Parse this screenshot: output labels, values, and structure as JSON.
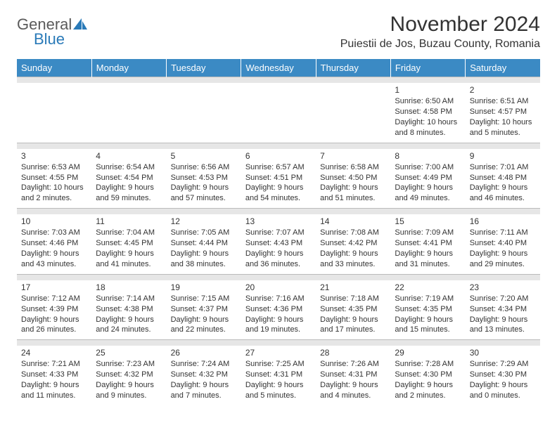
{
  "brand": {
    "word1": "General",
    "word2": "Blue",
    "logo_color": "#2a7ab8",
    "text_color": "#5a5a5a"
  },
  "title": "November 2024",
  "location": "Puiestii de Jos, Buzau County, Romania",
  "colors": {
    "header_bg": "#3b8ac4",
    "sep_bg": "#e6e6e6"
  },
  "day_headers": [
    "Sunday",
    "Monday",
    "Tuesday",
    "Wednesday",
    "Thursday",
    "Friday",
    "Saturday"
  ],
  "weeks": [
    [
      {
        "n": "",
        "sr": "",
        "ss": "",
        "dl": ""
      },
      {
        "n": "",
        "sr": "",
        "ss": "",
        "dl": ""
      },
      {
        "n": "",
        "sr": "",
        "ss": "",
        "dl": ""
      },
      {
        "n": "",
        "sr": "",
        "ss": "",
        "dl": ""
      },
      {
        "n": "",
        "sr": "",
        "ss": "",
        "dl": ""
      },
      {
        "n": "1",
        "sr": "Sunrise: 6:50 AM",
        "ss": "Sunset: 4:58 PM",
        "dl": "Daylight: 10 hours and 8 minutes."
      },
      {
        "n": "2",
        "sr": "Sunrise: 6:51 AM",
        "ss": "Sunset: 4:57 PM",
        "dl": "Daylight: 10 hours and 5 minutes."
      }
    ],
    [
      {
        "n": "3",
        "sr": "Sunrise: 6:53 AM",
        "ss": "Sunset: 4:55 PM",
        "dl": "Daylight: 10 hours and 2 minutes."
      },
      {
        "n": "4",
        "sr": "Sunrise: 6:54 AM",
        "ss": "Sunset: 4:54 PM",
        "dl": "Daylight: 9 hours and 59 minutes."
      },
      {
        "n": "5",
        "sr": "Sunrise: 6:56 AM",
        "ss": "Sunset: 4:53 PM",
        "dl": "Daylight: 9 hours and 57 minutes."
      },
      {
        "n": "6",
        "sr": "Sunrise: 6:57 AM",
        "ss": "Sunset: 4:51 PM",
        "dl": "Daylight: 9 hours and 54 minutes."
      },
      {
        "n": "7",
        "sr": "Sunrise: 6:58 AM",
        "ss": "Sunset: 4:50 PM",
        "dl": "Daylight: 9 hours and 51 minutes."
      },
      {
        "n": "8",
        "sr": "Sunrise: 7:00 AM",
        "ss": "Sunset: 4:49 PM",
        "dl": "Daylight: 9 hours and 49 minutes."
      },
      {
        "n": "9",
        "sr": "Sunrise: 7:01 AM",
        "ss": "Sunset: 4:48 PM",
        "dl": "Daylight: 9 hours and 46 minutes."
      }
    ],
    [
      {
        "n": "10",
        "sr": "Sunrise: 7:03 AM",
        "ss": "Sunset: 4:46 PM",
        "dl": "Daylight: 9 hours and 43 minutes."
      },
      {
        "n": "11",
        "sr": "Sunrise: 7:04 AM",
        "ss": "Sunset: 4:45 PM",
        "dl": "Daylight: 9 hours and 41 minutes."
      },
      {
        "n": "12",
        "sr": "Sunrise: 7:05 AM",
        "ss": "Sunset: 4:44 PM",
        "dl": "Daylight: 9 hours and 38 minutes."
      },
      {
        "n": "13",
        "sr": "Sunrise: 7:07 AM",
        "ss": "Sunset: 4:43 PM",
        "dl": "Daylight: 9 hours and 36 minutes."
      },
      {
        "n": "14",
        "sr": "Sunrise: 7:08 AM",
        "ss": "Sunset: 4:42 PM",
        "dl": "Daylight: 9 hours and 33 minutes."
      },
      {
        "n": "15",
        "sr": "Sunrise: 7:09 AM",
        "ss": "Sunset: 4:41 PM",
        "dl": "Daylight: 9 hours and 31 minutes."
      },
      {
        "n": "16",
        "sr": "Sunrise: 7:11 AM",
        "ss": "Sunset: 4:40 PM",
        "dl": "Daylight: 9 hours and 29 minutes."
      }
    ],
    [
      {
        "n": "17",
        "sr": "Sunrise: 7:12 AM",
        "ss": "Sunset: 4:39 PM",
        "dl": "Daylight: 9 hours and 26 minutes."
      },
      {
        "n": "18",
        "sr": "Sunrise: 7:14 AM",
        "ss": "Sunset: 4:38 PM",
        "dl": "Daylight: 9 hours and 24 minutes."
      },
      {
        "n": "19",
        "sr": "Sunrise: 7:15 AM",
        "ss": "Sunset: 4:37 PM",
        "dl": "Daylight: 9 hours and 22 minutes."
      },
      {
        "n": "20",
        "sr": "Sunrise: 7:16 AM",
        "ss": "Sunset: 4:36 PM",
        "dl": "Daylight: 9 hours and 19 minutes."
      },
      {
        "n": "21",
        "sr": "Sunrise: 7:18 AM",
        "ss": "Sunset: 4:35 PM",
        "dl": "Daylight: 9 hours and 17 minutes."
      },
      {
        "n": "22",
        "sr": "Sunrise: 7:19 AM",
        "ss": "Sunset: 4:35 PM",
        "dl": "Daylight: 9 hours and 15 minutes."
      },
      {
        "n": "23",
        "sr": "Sunrise: 7:20 AM",
        "ss": "Sunset: 4:34 PM",
        "dl": "Daylight: 9 hours and 13 minutes."
      }
    ],
    [
      {
        "n": "24",
        "sr": "Sunrise: 7:21 AM",
        "ss": "Sunset: 4:33 PM",
        "dl": "Daylight: 9 hours and 11 minutes."
      },
      {
        "n": "25",
        "sr": "Sunrise: 7:23 AM",
        "ss": "Sunset: 4:32 PM",
        "dl": "Daylight: 9 hours and 9 minutes."
      },
      {
        "n": "26",
        "sr": "Sunrise: 7:24 AM",
        "ss": "Sunset: 4:32 PM",
        "dl": "Daylight: 9 hours and 7 minutes."
      },
      {
        "n": "27",
        "sr": "Sunrise: 7:25 AM",
        "ss": "Sunset: 4:31 PM",
        "dl": "Daylight: 9 hours and 5 minutes."
      },
      {
        "n": "28",
        "sr": "Sunrise: 7:26 AM",
        "ss": "Sunset: 4:31 PM",
        "dl": "Daylight: 9 hours and 4 minutes."
      },
      {
        "n": "29",
        "sr": "Sunrise: 7:28 AM",
        "ss": "Sunset: 4:30 PM",
        "dl": "Daylight: 9 hours and 2 minutes."
      },
      {
        "n": "30",
        "sr": "Sunrise: 7:29 AM",
        "ss": "Sunset: 4:30 PM",
        "dl": "Daylight: 9 hours and 0 minutes."
      }
    ]
  ]
}
